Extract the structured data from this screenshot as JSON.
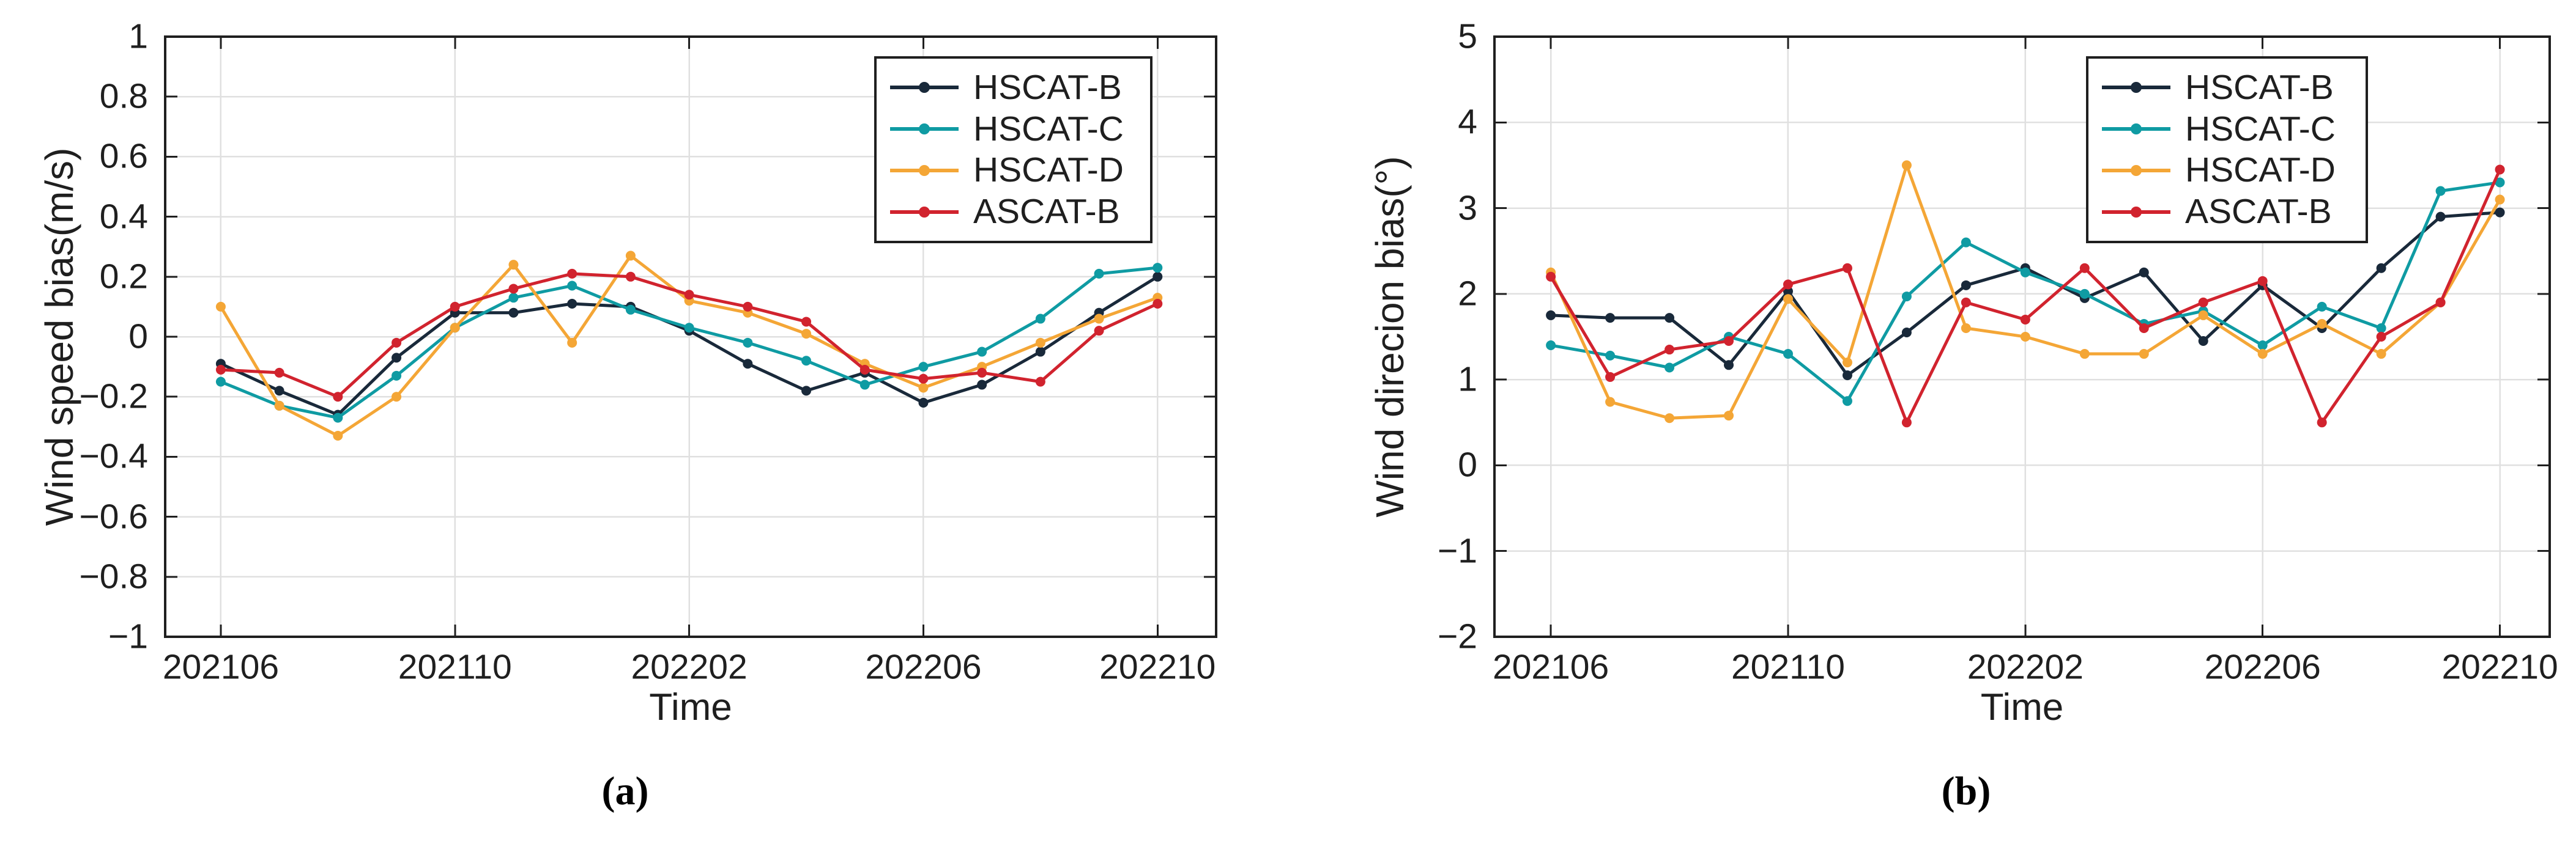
{
  "figure": {
    "background": "#ffffff",
    "legend_entries": [
      "HSCAT-B",
      "HSCAT-C",
      "HSCAT-D",
      "ASCAT-B"
    ]
  },
  "colors": {
    "hscat_b": "#19293a",
    "hscat_c": "#0f9ba3",
    "hscat_d": "#f4a636",
    "ascat_b": "#d1232e",
    "axis": "#1f1f1f",
    "grid": "#e0e0e0",
    "text": "#1f1f1f"
  },
  "chart_data": [
    {
      "type": "line",
      "panel": "a",
      "caption": "(a)",
      "title": "",
      "xlabel": "Time",
      "ylabel": "Wind speed bias(m/s)",
      "grid": true,
      "legend_position": "top-right-inside",
      "x_months": [
        "202106",
        "202107",
        "202108",
        "202109",
        "202110",
        "202111",
        "202112",
        "202201",
        "202202",
        "202203",
        "202204",
        "202205",
        "202206",
        "202207",
        "202208",
        "202209",
        "202210"
      ],
      "xtick_indices": [
        0,
        4,
        8,
        12,
        16
      ],
      "xtick_labels": [
        "202106",
        "202110",
        "202202",
        "202206",
        "202210"
      ],
      "ylim": [
        -1,
        1
      ],
      "ytick_values": [
        1,
        0.8,
        0.6,
        0.4,
        0.2,
        0,
        -0.2,
        -0.4,
        -0.6,
        -0.8,
        -1
      ],
      "ytick_labels": [
        "1",
        "0.8",
        "0.6",
        "0.4",
        "0.2",
        "0",
        "−0.2",
        "−0.4",
        "−0.6",
        "−0.8",
        "−1"
      ],
      "series": [
        {
          "name": "HSCAT-B",
          "color": "#19293a",
          "values": [
            -0.09,
            -0.18,
            -0.26,
            -0.07,
            0.08,
            0.08,
            0.11,
            0.1,
            0.02,
            -0.09,
            -0.18,
            -0.12,
            -0.22,
            -0.16,
            -0.05,
            0.08,
            0.2
          ]
        },
        {
          "name": "HSCAT-C",
          "color": "#0f9ba3",
          "values": [
            -0.15,
            -0.23,
            -0.27,
            -0.13,
            0.03,
            0.13,
            0.17,
            0.09,
            0.03,
            -0.02,
            -0.08,
            -0.16,
            -0.1,
            -0.05,
            0.06,
            0.21,
            0.23
          ]
        },
        {
          "name": "HSCAT-D",
          "color": "#f4a636",
          "values": [
            0.1,
            -0.23,
            -0.33,
            -0.2,
            0.03,
            0.24,
            -0.02,
            0.27,
            0.12,
            0.08,
            0.01,
            -0.09,
            -0.17,
            -0.1,
            -0.02,
            0.06,
            0.13
          ]
        },
        {
          "name": "ASCAT-B",
          "color": "#d1232e",
          "values": [
            -0.11,
            -0.12,
            -0.2,
            -0.02,
            0.1,
            0.16,
            0.21,
            0.2,
            0.14,
            0.1,
            0.05,
            -0.11,
            -0.14,
            -0.12,
            -0.15,
            0.02,
            0.11
          ]
        }
      ]
    },
    {
      "type": "line",
      "panel": "b",
      "caption": "(b)",
      "title": "",
      "xlabel": "Time",
      "ylabel": "Wind direcion bias(°)",
      "grid": true,
      "legend_position": "top-right-inside",
      "x_months": [
        "202106",
        "202107",
        "202108",
        "202109",
        "202110",
        "202111",
        "202112",
        "202201",
        "202202",
        "202203",
        "202204",
        "202205",
        "202206",
        "202207",
        "202208",
        "202209",
        "202210"
      ],
      "xtick_indices": [
        0,
        4,
        8,
        12,
        16
      ],
      "xtick_labels": [
        "202106",
        "202110",
        "202202",
        "202206",
        "202210"
      ],
      "ylim": [
        -2,
        5
      ],
      "ytick_values": [
        5,
        4,
        3,
        2,
        1,
        0,
        -1,
        -2
      ],
      "ytick_labels": [
        "5",
        "4",
        "3",
        "2",
        "1",
        "0",
        "−1",
        "−2"
      ],
      "series": [
        {
          "name": "HSCAT-B",
          "color": "#19293a",
          "values": [
            1.75,
            1.72,
            1.72,
            1.17,
            2.03,
            1.05,
            1.55,
            2.1,
            2.3,
            1.95,
            2.25,
            1.45,
            2.1,
            1.6,
            2.3,
            2.9,
            2.95
          ]
        },
        {
          "name": "HSCAT-C",
          "color": "#0f9ba3",
          "values": [
            1.4,
            1.28,
            1.14,
            1.5,
            1.3,
            0.75,
            1.97,
            2.6,
            2.25,
            2.0,
            1.65,
            1.8,
            1.4,
            1.85,
            1.6,
            3.2,
            3.3
          ]
        },
        {
          "name": "HSCAT-D",
          "color": "#f4a636",
          "values": [
            2.25,
            0.74,
            0.55,
            0.58,
            1.94,
            1.2,
            3.5,
            1.6,
            1.5,
            1.3,
            1.3,
            1.75,
            1.3,
            1.65,
            1.3,
            1.9,
            3.1
          ]
        },
        {
          "name": "ASCAT-B",
          "color": "#d1232e",
          "values": [
            2.2,
            1.03,
            1.35,
            1.45,
            2.11,
            2.3,
            0.5,
            1.9,
            1.7,
            2.3,
            1.6,
            1.9,
            2.15,
            0.5,
            1.5,
            1.9,
            3.45
          ]
        }
      ]
    }
  ]
}
